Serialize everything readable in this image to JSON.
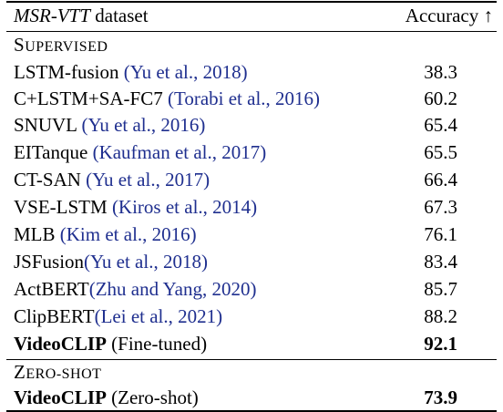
{
  "header": {
    "dataset_name": "MSR-VTT",
    "dataset_suffix": " dataset",
    "metric": "Accuracy ↑"
  },
  "sections": {
    "supervised_first": "S",
    "supervised_rest": "upervised",
    "zeroshot_first": "Z",
    "zeroshot_rest": "ero-shot"
  },
  "rows": [
    {
      "method": "LSTM-fusion ",
      "cite": "(Yu et al., 2018)",
      "value": "38.3"
    },
    {
      "method": "C+LSTM+SA-FC7 ",
      "cite": "(Torabi et al., 2016)",
      "value": "60.2"
    },
    {
      "method": "SNUVL ",
      "cite": "(Yu et al., 2016)",
      "value": "65.4"
    },
    {
      "method": "EITanque ",
      "cite": "(Kaufman et al., 2017)",
      "value": "65.5"
    },
    {
      "method": "CT-SAN ",
      "cite": "(Yu et al., 2017)",
      "value": "66.4"
    },
    {
      "method": "VSE-LSTM ",
      "cite": "(Kiros et al., 2014)",
      "value": "67.3"
    },
    {
      "method": "MLB ",
      "cite": "(Kim et al., 2016)",
      "value": "76.1"
    },
    {
      "method": "JSFusion",
      "cite": "(Yu et al., 2018)",
      "value": "83.4"
    },
    {
      "method": "ActBERT",
      "cite": "(Zhu and Yang, 2020)",
      "value": "85.7"
    },
    {
      "method": "ClipBERT",
      "cite": "(Lei et al., 2021)",
      "value": "88.2"
    }
  ],
  "finetuned": {
    "method_bold": "VideoCLIP",
    "method_rest": " (Fine-tuned)",
    "value": "92.1"
  },
  "zeroshot": {
    "method_bold": "VideoCLIP",
    "method_rest": " (Zero-shot)",
    "value": "73.9"
  }
}
